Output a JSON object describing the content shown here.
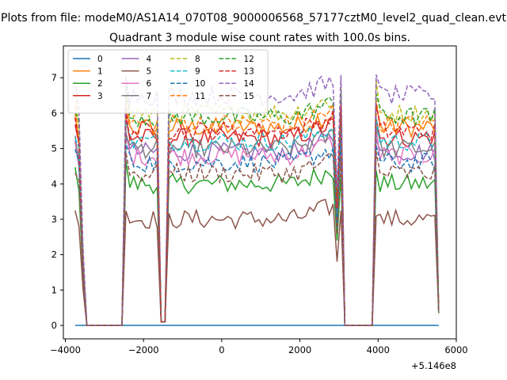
{
  "chart_data": {
    "type": "line",
    "suptitle": "Plots from file: modeM0/AS1A14_070T08_9000006568_57177cztM0_level2_quad_clean.evt",
    "title": "Quadrant 3 module wise count rates with 100.0s bins.",
    "xlabel": "",
    "ylabel": "",
    "x_offset_label": "+5.146e8",
    "xlim": [
      -4050,
      6000
    ],
    "ylim": [
      -0.38,
      7.9
    ],
    "xticks": [
      -4000,
      -2000,
      0,
      2000,
      4000,
      6000
    ],
    "xtick_labels": [
      "−4000",
      "−2000",
      "0",
      "2000",
      "4000",
      "6000"
    ],
    "yticks": [
      0,
      1,
      2,
      3,
      4,
      5,
      6,
      7
    ],
    "ytick_labels": [
      "0",
      "1",
      "2",
      "3",
      "4",
      "5",
      "6",
      "7"
    ],
    "grid": false,
    "legend_position": "upper-left",
    "legend_columns": 4,
    "x_start": -3750,
    "bin_width": 100,
    "n_bins": 94,
    "segments": [
      {
        "start": -3750,
        "end": -3550,
        "kind": "decay"
      },
      {
        "start": -3450,
        "end": -2550,
        "kind": "gap"
      },
      {
        "start": -2450,
        "end": -1650,
        "kind": "on"
      },
      {
        "start": -1550,
        "end": -1450,
        "kind": "dip"
      },
      {
        "start": -1350,
        "end": 3050,
        "kind": "on"
      },
      {
        "start": 3150,
        "end": 3850,
        "kind": "gap"
      },
      {
        "start": 3950,
        "end": 5450,
        "kind": "on"
      },
      {
        "start": 5550,
        "end": 5550,
        "kind": "end"
      }
    ],
    "series": [
      {
        "name": "0",
        "style": "solid",
        "color": "#1f77b4",
        "level": 0.0
      },
      {
        "name": "1",
        "style": "solid",
        "color": "#ff7f0e",
        "level": 5.6
      },
      {
        "name": "2",
        "style": "solid",
        "color": "#2ca02c",
        "level": 4.0
      },
      {
        "name": "3",
        "style": "solid",
        "color": "#d62728",
        "level": 5.3
      },
      {
        "name": "4",
        "style": "solid",
        "color": "#9467bd",
        "level": 4.9
      },
      {
        "name": "5",
        "style": "solid",
        "color": "#8c564b",
        "level": 3.0
      },
      {
        "name": "6",
        "style": "solid",
        "color": "#e377c2",
        "level": 4.8
      },
      {
        "name": "7",
        "style": "solid",
        "color": "#7f7f7f",
        "level": 5.0
      },
      {
        "name": "8",
        "style": "dashed",
        "color": "#bcbd22",
        "level": 6.0
      },
      {
        "name": "9",
        "style": "dashed",
        "color": "#17becf",
        "level": 5.2
      },
      {
        "name": "10",
        "style": "dashed",
        "color": "#1f77b4",
        "level": 4.6
      },
      {
        "name": "11",
        "style": "dashed",
        "color": "#ff7f0e",
        "level": 5.7
      },
      {
        "name": "12",
        "style": "dashed",
        "color": "#2ca02c",
        "level": 5.9
      },
      {
        "name": "13",
        "style": "dashed",
        "color": "#d62728",
        "level": 5.5
      },
      {
        "name": "14",
        "style": "dashed",
        "color": "#9467bd",
        "level": 6.5
      },
      {
        "name": "15",
        "style": "dashed",
        "color": "#8c564b",
        "level": 4.3
      }
    ]
  }
}
